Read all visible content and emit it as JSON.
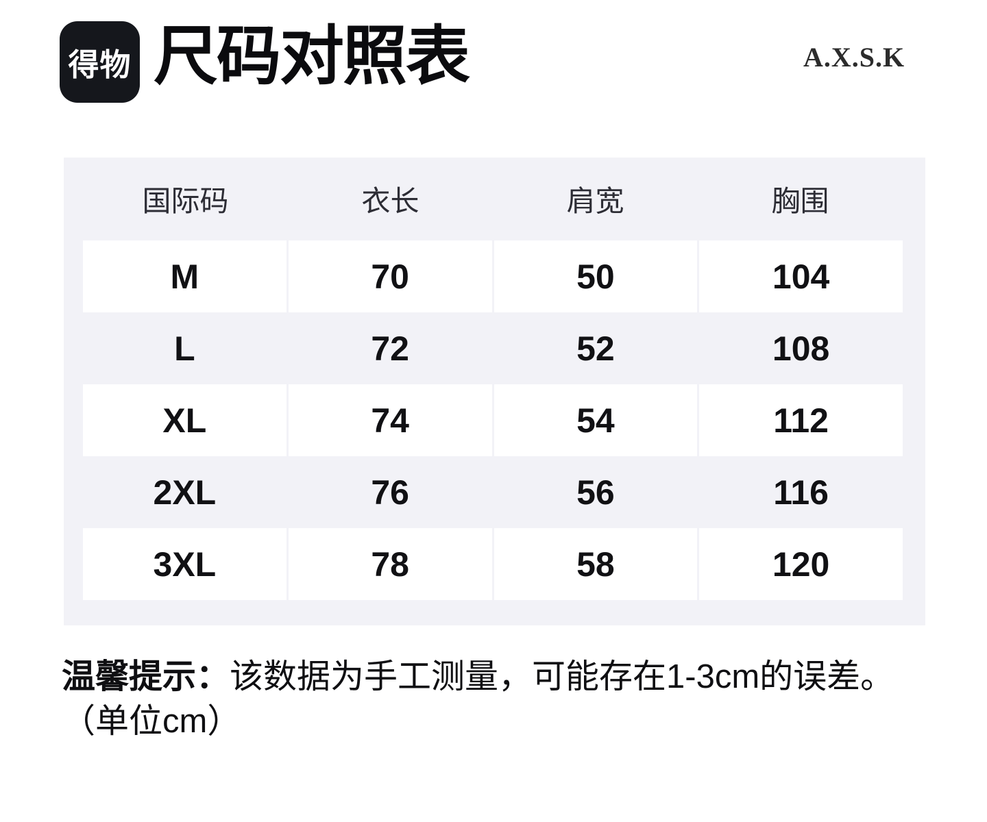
{
  "header": {
    "logo_text": "得物",
    "title": "尺码对照表",
    "brand": "A.X.S.K"
  },
  "table": {
    "columns": [
      "国际码",
      "衣长",
      "肩宽",
      "胸围"
    ],
    "rows": [
      [
        "M",
        "70",
        "50",
        "104"
      ],
      [
        "L",
        "72",
        "52",
        "108"
      ],
      [
        "XL",
        "74",
        "54",
        "112"
      ],
      [
        "2XL",
        "76",
        "56",
        "116"
      ],
      [
        "3XL",
        "78",
        "58",
        "120"
      ]
    ]
  },
  "note": {
    "label": "温馨提示：",
    "text": "该数据为手工测量，可能存在1-3cm的误差。",
    "unit": "（单位cm）"
  },
  "colors": {
    "page_background": "#ffffff",
    "table_background": "#f2f2f7",
    "row_background": "#ffffff",
    "logo_background": "#15171c",
    "text": "#111114"
  },
  "chart_data": {
    "type": "table",
    "title": "尺码对照表",
    "columns": [
      "国际码",
      "衣长",
      "肩宽",
      "胸围"
    ],
    "rows": [
      [
        "M",
        70,
        50,
        104
      ],
      [
        "L",
        72,
        52,
        108
      ],
      [
        "XL",
        74,
        54,
        112
      ],
      [
        "2XL",
        76,
        56,
        116
      ],
      [
        "3XL",
        78,
        58,
        120
      ]
    ],
    "unit": "cm"
  }
}
